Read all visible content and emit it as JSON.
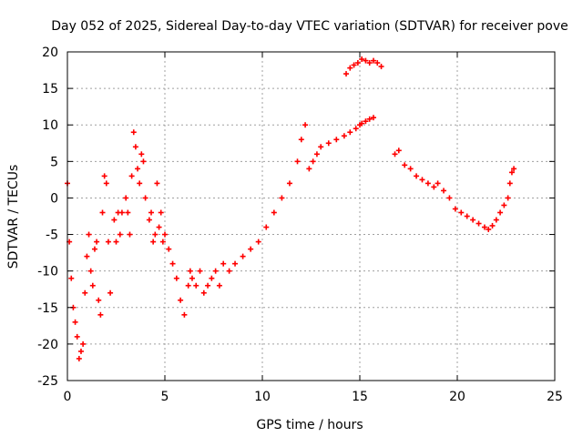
{
  "chart_data": {
    "type": "scatter",
    "title": "Day 052 of 2025, Sidereal Day-to-day VTEC variation (SDTVAR) for receiver pove",
    "xlabel": "GPS time / hours",
    "ylabel": "SDTVAR / TECUs",
    "xlim": [
      0,
      25
    ],
    "ylim": [
      -25,
      20
    ],
    "xticks": [
      0,
      5,
      10,
      15,
      20,
      25
    ],
    "yticks": [
      -25,
      -20,
      -15,
      -10,
      -5,
      0,
      5,
      10,
      15,
      20
    ],
    "grid": true,
    "marker": "+",
    "color": "#ff0000",
    "series": [
      {
        "name": "SDTVAR",
        "x": [
          0.0,
          0.1,
          0.2,
          0.3,
          0.4,
          0.5,
          0.6,
          0.7,
          0.8,
          0.9,
          1.0,
          1.1,
          1.2,
          1.3,
          1.4,
          1.5,
          1.6,
          1.7,
          1.8,
          1.9,
          2.0,
          2.1,
          2.2,
          2.4,
          2.5,
          2.6,
          2.7,
          2.8,
          3.0,
          3.1,
          3.2,
          3.3,
          3.4,
          3.5,
          3.6,
          3.7,
          3.8,
          3.9,
          4.0,
          4.2,
          4.3,
          4.4,
          4.5,
          4.6,
          4.7,
          4.8,
          4.9,
          5.0,
          5.2,
          5.4,
          5.6,
          5.8,
          6.0,
          6.2,
          6.3,
          6.4,
          6.6,
          6.8,
          7.0,
          7.2,
          7.4,
          7.6,
          7.8,
          8.0,
          8.3,
          8.6,
          9.0,
          9.4,
          9.8,
          10.2,
          10.6,
          11.0,
          11.4,
          11.8,
          12.0,
          12.2,
          12.4,
          12.6,
          12.8,
          13.0,
          13.4,
          13.8,
          14.2,
          14.5,
          14.8,
          15.0,
          15.1,
          15.3,
          15.5,
          15.7,
          14.3,
          14.5,
          14.7,
          14.9,
          15.1,
          15.3,
          15.5,
          15.7,
          15.9,
          16.1,
          16.8,
          17.0,
          17.3,
          17.6,
          17.9,
          18.2,
          18.5,
          18.8,
          19.0,
          19.3,
          19.6,
          19.9,
          20.2,
          20.5,
          20.8,
          21.1,
          21.4,
          21.6,
          21.8,
          22.0,
          22.2,
          22.4,
          22.6,
          22.7,
          22.8,
          22.9
        ],
        "y": [
          2.0,
          -6.0,
          -11.0,
          -15.0,
          -17.0,
          -19.0,
          -22.0,
          -21.0,
          -20.0,
          -13.0,
          -8.0,
          -5.0,
          -10.0,
          -12.0,
          -7.0,
          -6.0,
          -14.0,
          -16.0,
          -2.0,
          3.0,
          2.0,
          -6.0,
          -13.0,
          -3.0,
          -6.0,
          -2.0,
          -5.0,
          -2.0,
          0.0,
          -2.0,
          -5.0,
          3.0,
          9.0,
          7.0,
          4.0,
          2.0,
          6.0,
          5.0,
          0.0,
          -3.0,
          -2.0,
          -6.0,
          -5.0,
          2.0,
          -4.0,
          -2.0,
          -6.0,
          -5.0,
          -7.0,
          -9.0,
          -11.0,
          -14.0,
          -16.0,
          -12.0,
          -10.0,
          -11.0,
          -12.0,
          -10.0,
          -13.0,
          -12.0,
          -11.0,
          -10.0,
          -12.0,
          -9.0,
          -10.0,
          -9.0,
          -8.0,
          -7.0,
          -6.0,
          -4.0,
          -2.0,
          0.0,
          2.0,
          5.0,
          8.0,
          10.0,
          4.0,
          5.0,
          6.0,
          7.0,
          7.5,
          8.0,
          8.5,
          9.0,
          9.5,
          10.0,
          10.2,
          10.5,
          10.8,
          11.0,
          17.0,
          17.8,
          18.2,
          18.5,
          19.0,
          18.8,
          18.5,
          18.8,
          18.5,
          18.0,
          6.0,
          6.5,
          4.5,
          4.0,
          3.0,
          2.5,
          2.0,
          1.5,
          2.0,
          1.0,
          0.0,
          -1.5,
          -2.0,
          -2.5,
          -3.0,
          -3.5,
          -4.0,
          -4.3,
          -3.8,
          -3.0,
          -2.0,
          -1.0,
          0.0,
          2.0,
          3.5,
          4.0
        ]
      }
    ]
  }
}
